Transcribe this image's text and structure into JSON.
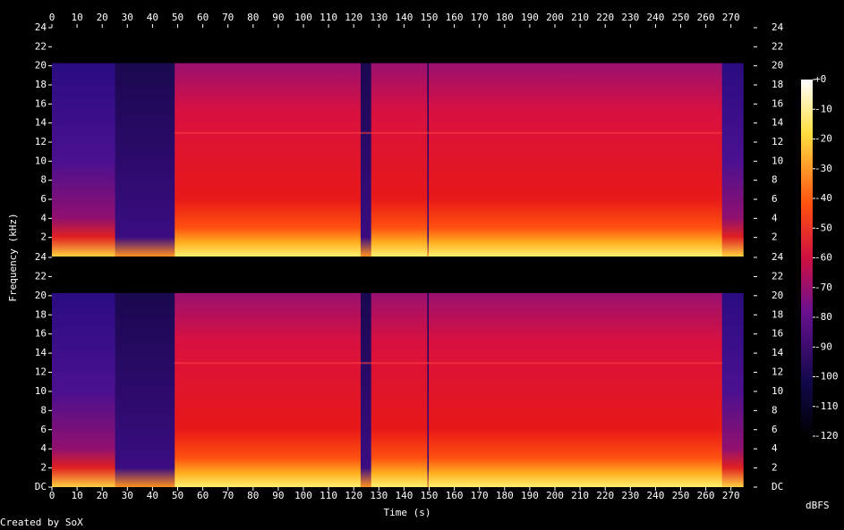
{
  "chart_data": {
    "type": "spectrogram",
    "x_label": "Time (s)",
    "y_label": "Frequency (kHz)",
    "xlim": [
      0,
      279
    ],
    "xticks": [
      0,
      10,
      20,
      30,
      40,
      50,
      60,
      70,
      80,
      90,
      100,
      110,
      120,
      130,
      140,
      150,
      160,
      170,
      180,
      190,
      200,
      210,
      220,
      230,
      240,
      250,
      260,
      270
    ],
    "ylim": [
      0,
      24
    ],
    "yticks": [
      {
        "value": 0,
        "label": "DC"
      },
      2,
      4,
      6,
      8,
      10,
      12,
      14,
      16,
      18,
      20,
      22,
      24
    ],
    "colorbar": {
      "label": "dBFS",
      "lim": [
        -120,
        0
      ],
      "ticks": [
        {
          "value": 0,
          "label": "+0"
        },
        -10,
        -20,
        -30,
        -40,
        -50,
        -60,
        -70,
        -80,
        -90,
        -100,
        -110,
        -120
      ]
    },
    "credit": "Created by SoX"
  }
}
